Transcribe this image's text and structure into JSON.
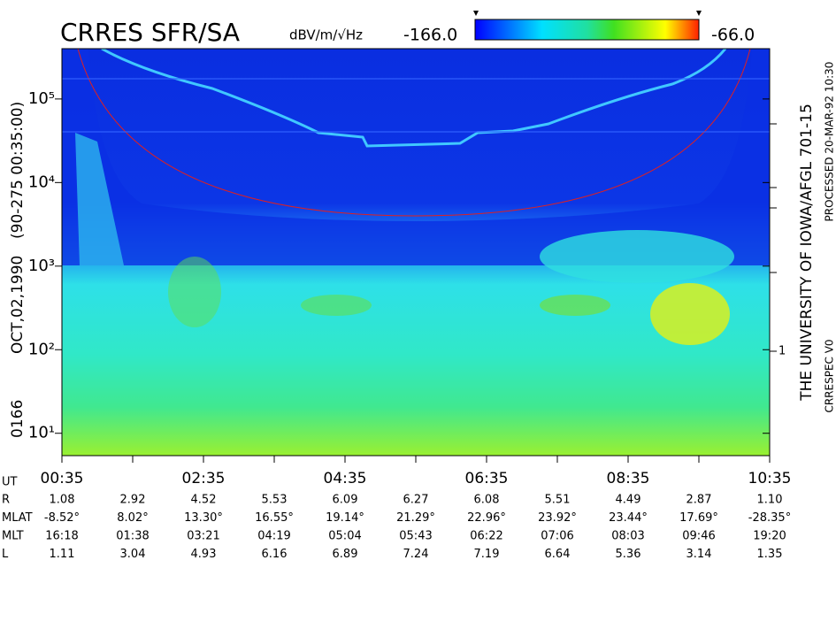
{
  "chart_data": {
    "type": "spectrogram",
    "title": "CRRES SFR/SA",
    "colorbar": {
      "unit": "dBV/m/√Hz",
      "min": {
        "value": -166,
        "label": "-166.0"
      },
      "max": {
        "value": -66,
        "label": "-66.0"
      }
    },
    "left_label": [
      "0166",
      "OCT,02,1990",
      "(90-275 00:35:00)"
    ],
    "right_labels": {
      "institution": "THE UNIVERSITY OF IOWA/AFGL 701-15",
      "version": "CRRESPEC V0",
      "processed": "PROCESSED 20-MAR-92 10:30"
    },
    "log_y": true,
    "ylim": [
      5.4,
      400000
    ],
    "yticks": [
      {
        "value": 10,
        "label": "10¹"
      },
      {
        "value": 100,
        "label": "10²"
      },
      {
        "value": 1000,
        "label": "10³"
      },
      {
        "value": 10000,
        "label": "10⁴"
      },
      {
        "value": 100000,
        "label": "10⁵"
      }
    ],
    "right_axis_label": "1",
    "x": [
      "00:35",
      null,
      "02:35",
      null,
      "04:35",
      null,
      "06:35",
      null,
      "08:35",
      null,
      "10:35"
    ],
    "ephemeris": {
      "x_label": "UT",
      "rows": [
        {
          "name": "R",
          "values": [
            "1.08",
            "2.92",
            "4.52",
            "5.53",
            "6.09",
            "6.27",
            "6.08",
            "5.51",
            "4.49",
            "2.87",
            "1.10"
          ]
        },
        {
          "name": "MLAT",
          "values": [
            "-8.52°",
            "8.02°",
            "13.30°",
            "16.55°",
            "19.14°",
            "21.29°",
            "22.96°",
            "23.92°",
            "23.44°",
            "17.69°",
            "-28.35°"
          ]
        },
        {
          "name": "MLT",
          "values": [
            "16:18",
            "01:38",
            "03:21",
            "04:19",
            "05:04",
            "05:43",
            "06:22",
            "07:06",
            "08:03",
            "09:46",
            "19:20"
          ]
        },
        {
          "name": "L",
          "values": [
            "1.11",
            "3.04",
            "4.93",
            "6.16",
            "6.89",
            "7.24",
            "7.19",
            "6.64",
            "5.36",
            "3.14",
            "1.35"
          ]
        }
      ]
    }
  }
}
